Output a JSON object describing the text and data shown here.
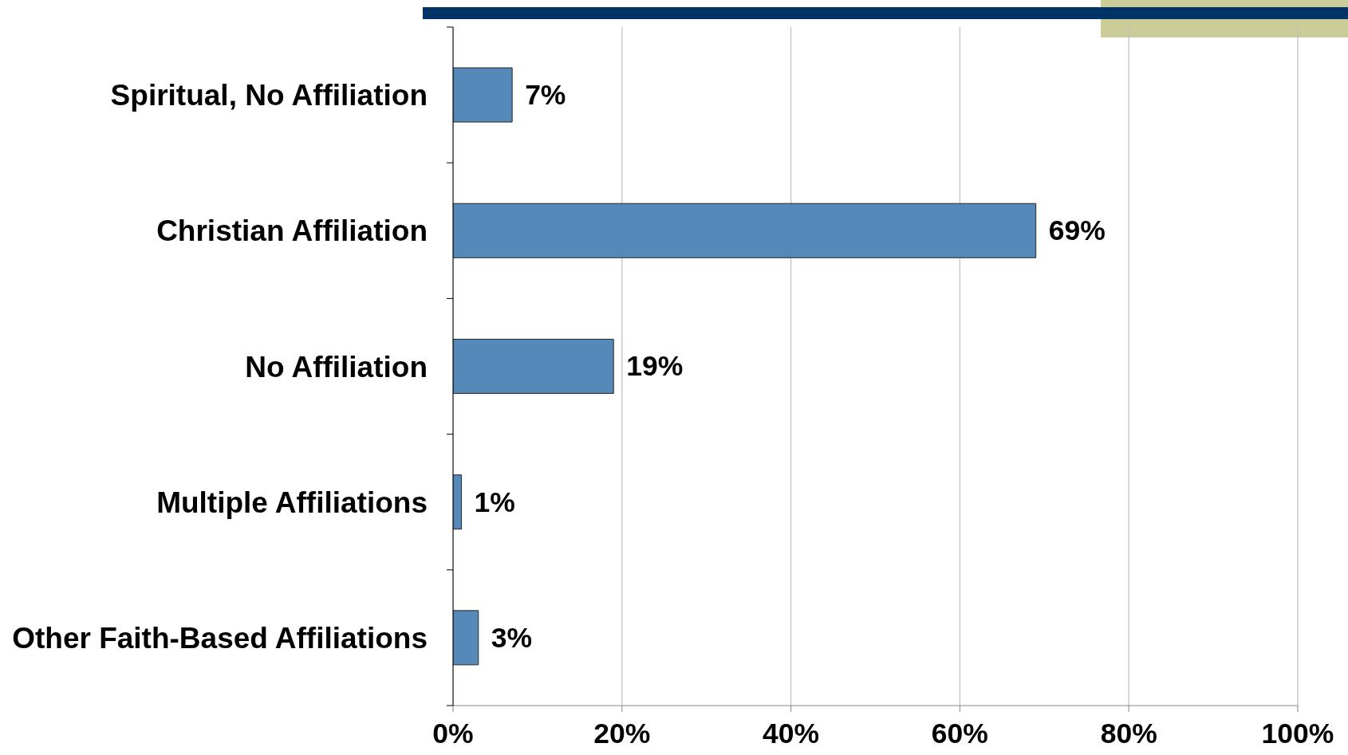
{
  "chart_data": {
    "type": "bar",
    "orientation": "horizontal",
    "categories": [
      "Spiritual, No Affiliation",
      "Christian Affiliation",
      "No Affiliation",
      "Multiple Affiliations",
      "Other Faith-Based Affiliations"
    ],
    "values": [
      7,
      69,
      19,
      1,
      3
    ],
    "color": "#5589b9",
    "value_labels": [
      "7%",
      "69%",
      "19%",
      "1%",
      "3%"
    ],
    "xlim": [
      0,
      100
    ],
    "xticks": [
      {
        "value": 0,
        "label": "0%"
      },
      {
        "value": 20,
        "label": "20%"
      },
      {
        "value": 40,
        "label": "40%"
      },
      {
        "value": 60,
        "label": "60%"
      },
      {
        "value": 80,
        "label": "80%"
      },
      {
        "value": 100,
        "label": "100%"
      }
    ],
    "grid": "x",
    "legend": false
  }
}
